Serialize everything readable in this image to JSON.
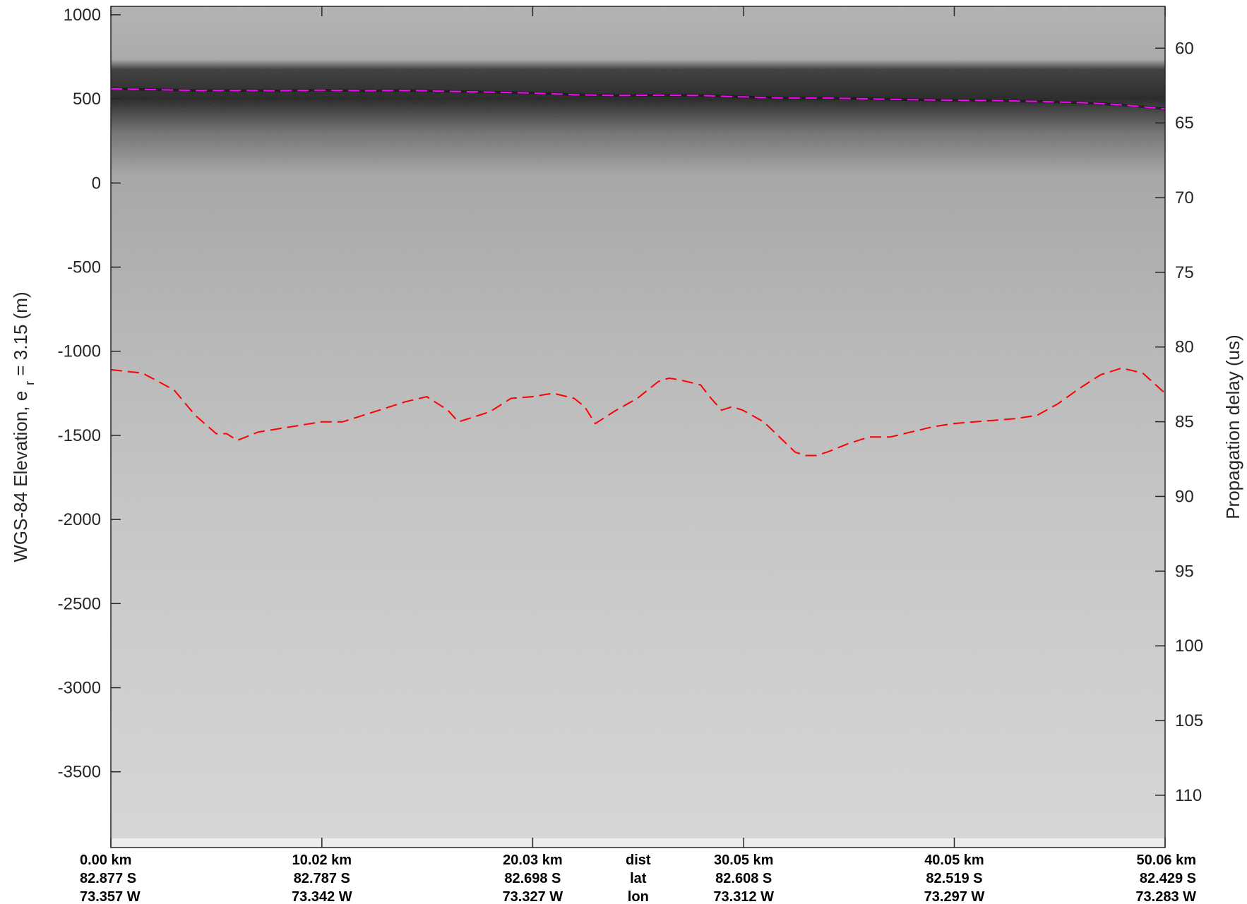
{
  "chart_data": {
    "type": "line",
    "background": "radar echogram (grayscale)",
    "grid": false,
    "legend": "none",
    "y_left": {
      "label_main": "WGS-84 Elevation, e",
      "label_sub": "r",
      "label_rest": " = 3.15 (m)",
      "ylim": [
        -3950,
        1050
      ],
      "ticks": [
        1000,
        500,
        0,
        -500,
        -1000,
        -1500,
        -2000,
        -2500,
        -3000,
        -3500
      ]
    },
    "y_right": {
      "label": "Propagation delay (us)",
      "ylim": [
        57.2,
        113.5
      ],
      "ticks": [
        60,
        65,
        70,
        75,
        80,
        85,
        90,
        95,
        100,
        105,
        110
      ]
    },
    "x": {
      "xlim_km": [
        0,
        50.06
      ],
      "ticks_km": [
        0.0,
        10.02,
        20.03,
        30.05,
        40.05,
        50.06
      ],
      "rows": [
        {
          "header": "dist",
          "values": [
            "0.00 km",
            "10.02 km",
            "20.03 km",
            "30.05 km",
            "40.05 km",
            "50.06 km"
          ]
        },
        {
          "header": "lat",
          "values": [
            "82.877 S",
            "82.787 S",
            "82.698 S",
            "82.608 S",
            "82.519 S",
            "82.429 S"
          ]
        },
        {
          "header": "lon",
          "values": [
            "73.357 W",
            "73.342 W",
            "73.327 W",
            "73.312 W",
            "73.297 W",
            "73.283 W"
          ]
        }
      ]
    },
    "series": [
      {
        "color": "#ff00ff",
        "style": "dashed",
        "x_km": [
          0,
          2,
          4,
          6,
          8,
          10,
          12,
          14,
          16,
          18,
          20,
          22,
          24,
          26,
          28,
          30,
          32,
          34,
          36,
          38,
          40,
          42,
          44,
          46,
          48,
          50.06
        ],
        "y_m": [
          560,
          555,
          550,
          550,
          548,
          552,
          548,
          550,
          545,
          540,
          535,
          525,
          520,
          522,
          520,
          512,
          505,
          505,
          500,
          495,
          492,
          490,
          485,
          478,
          465,
          440
        ]
      },
      {
        "color": "#ff0000",
        "style": "dashed",
        "x_km": [
          0,
          1.5,
          3,
          4,
          5,
          5.5,
          6,
          7,
          8,
          9,
          10,
          11,
          12,
          13,
          14,
          15,
          16,
          16.5,
          17,
          18,
          19,
          20,
          21,
          22,
          22.5,
          23,
          24,
          25,
          26,
          26.5,
          27,
          28,
          28.5,
          29,
          29.5,
          30,
          31,
          32,
          32.5,
          33,
          33.5,
          34,
          35,
          36,
          37,
          38,
          39,
          40,
          41,
          42,
          43,
          44,
          45,
          46,
          47,
          48,
          49,
          50.06
        ],
        "y_m": [
          -1110,
          -1130,
          -1230,
          -1380,
          -1490,
          -1490,
          -1530,
          -1480,
          -1460,
          -1440,
          -1420,
          -1420,
          -1380,
          -1340,
          -1300,
          -1270,
          -1350,
          -1420,
          -1400,
          -1360,
          -1280,
          -1270,
          -1250,
          -1280,
          -1330,
          -1430,
          -1350,
          -1280,
          -1180,
          -1160,
          -1170,
          -1200,
          -1280,
          -1350,
          -1330,
          -1350,
          -1420,
          -1540,
          -1600,
          -1620,
          -1620,
          -1600,
          -1550,
          -1510,
          -1510,
          -1480,
          -1450,
          -1430,
          -1420,
          -1410,
          -1400,
          -1380,
          -1310,
          -1220,
          -1140,
          -1100,
          -1130,
          -1250
        ]
      }
    ]
  },
  "colors": {
    "surface_pick": "#ff00ff",
    "bed_pick": "#ff0000",
    "axis": "#262626"
  }
}
